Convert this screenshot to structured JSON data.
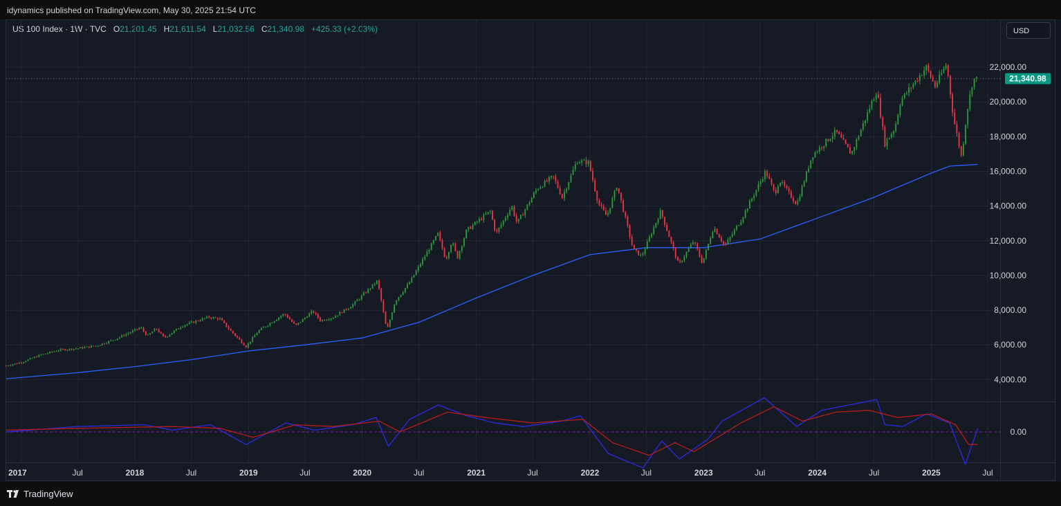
{
  "header": {
    "publisher": "idynamics published on TradingView.com, May 30, 2025 21:54 UTC"
  },
  "legend": {
    "symbol": "US 100 Index · 1W · TVC",
    "o_label": "O",
    "o_value": "21,201.45",
    "h_label": "H",
    "h_value": "21,611.54",
    "l_label": "L",
    "l_value": "21,032.56",
    "c_label": "C",
    "c_value": "21,340.98",
    "change": "+425.33 (+2.03%)"
  },
  "currency_button": "USD",
  "footer": {
    "brand": "TradingView"
  },
  "colors": {
    "up": "#26a69a",
    "up_candle": "#2e9e3a",
    "down": "#f23645",
    "ma": "#2962ff",
    "osc_fast": "#2b2bd6",
    "osc_slow": "#b71c1c",
    "price_tag": "#089981"
  },
  "chart_data": {
    "type": "candlestick",
    "symbol": "US 100 Index",
    "interval": "1W",
    "last_price": 21340.98,
    "last_price_label": "21,340.98",
    "ylim": [
      2500,
      23000
    ],
    "yticks": [
      {
        "value": 4000,
        "label": "4,000.00"
      },
      {
        "value": 6000,
        "label": "6,000.00"
      },
      {
        "value": 8000,
        "label": "8,000.00"
      },
      {
        "value": 10000,
        "label": "10,000.00"
      },
      {
        "value": 12000,
        "label": "12,000.00"
      },
      {
        "value": 14000,
        "label": "14,000.00"
      },
      {
        "value": 16000,
        "label": "16,000.00"
      },
      {
        "value": 18000,
        "label": "18,000.00"
      },
      {
        "value": 20000,
        "label": "20,000.00"
      },
      {
        "value": 22000,
        "label": "22,000.00"
      }
    ],
    "xticks": [
      {
        "date": "2017-01-01",
        "label": "2017",
        "year": true
      },
      {
        "date": "2017-07-01",
        "label": "Jul",
        "year": false
      },
      {
        "date": "2018-01-01",
        "label": "2018",
        "year": true
      },
      {
        "date": "2018-07-01",
        "label": "Jul",
        "year": false
      },
      {
        "date": "2019-01-01",
        "label": "2019",
        "year": true
      },
      {
        "date": "2019-07-01",
        "label": "Jul",
        "year": false
      },
      {
        "date": "2020-01-01",
        "label": "2020",
        "year": true
      },
      {
        "date": "2020-07-01",
        "label": "Jul",
        "year": false
      },
      {
        "date": "2021-01-01",
        "label": "2021",
        "year": true
      },
      {
        "date": "2021-07-01",
        "label": "Jul",
        "year": false
      },
      {
        "date": "2022-01-01",
        "label": "2022",
        "year": true
      },
      {
        "date": "2022-07-01",
        "label": "Jul",
        "year": false
      },
      {
        "date": "2023-01-01",
        "label": "2023",
        "year": true
      },
      {
        "date": "2023-07-01",
        "label": "Jul",
        "year": false
      },
      {
        "date": "2024-01-01",
        "label": "2024",
        "year": true
      },
      {
        "date": "2024-07-01",
        "label": "Jul",
        "year": false
      },
      {
        "date": "2025-01-01",
        "label": "2025",
        "year": true
      },
      {
        "date": "2025-07-01",
        "label": "Jul",
        "year": false
      }
    ],
    "price_path": [
      [
        "2016-11-14",
        4800
      ],
      [
        "2017-01-02",
        5000
      ],
      [
        "2017-03-01",
        5400
      ],
      [
        "2017-05-01",
        5700
      ],
      [
        "2017-07-01",
        5800
      ],
      [
        "2017-09-01",
        5950
      ],
      [
        "2017-11-01",
        6350
      ],
      [
        "2018-01-20",
        7000
      ],
      [
        "2018-02-10",
        6500
      ],
      [
        "2018-03-10",
        6950
      ],
      [
        "2018-04-05",
        6400
      ],
      [
        "2018-06-01",
        7100
      ],
      [
        "2018-08-25",
        7600
      ],
      [
        "2018-10-01",
        7500
      ],
      [
        "2018-11-05",
        6800
      ],
      [
        "2018-12-24",
        5900
      ],
      [
        "2019-02-01",
        6800
      ],
      [
        "2019-04-26",
        7800
      ],
      [
        "2019-06-01",
        7100
      ],
      [
        "2019-07-26",
        7950
      ],
      [
        "2019-08-20",
        7400
      ],
      [
        "2019-10-01",
        7600
      ],
      [
        "2019-12-01",
        8300
      ],
      [
        "2020-02-19",
        9700
      ],
      [
        "2020-03-20",
        6800
      ],
      [
        "2020-04-15",
        8500
      ],
      [
        "2020-06-01",
        9600
      ],
      [
        "2020-08-31",
        12400
      ],
      [
        "2020-09-25",
        10900
      ],
      [
        "2020-10-15",
        12000
      ],
      [
        "2020-11-01",
        11000
      ],
      [
        "2020-12-01",
        12600
      ],
      [
        "2021-02-15",
        13700
      ],
      [
        "2021-03-05",
        12400
      ],
      [
        "2021-04-25",
        14000
      ],
      [
        "2021-05-12",
        13000
      ],
      [
        "2021-07-15",
        15000
      ],
      [
        "2021-09-05",
        15700
      ],
      [
        "2021-10-04",
        14500
      ],
      [
        "2021-11-20",
        16600
      ],
      [
        "2021-12-28",
        16500
      ],
      [
        "2022-01-27",
        14200
      ],
      [
        "2022-02-24",
        13400
      ],
      [
        "2022-03-29",
        15200
      ],
      [
        "2022-05-20",
        11500
      ],
      [
        "2022-06-16",
        11100
      ],
      [
        "2022-08-16",
        13700
      ],
      [
        "2022-10-13",
        10600
      ],
      [
        "2022-11-30",
        12000
      ],
      [
        "2022-12-28",
        10700
      ],
      [
        "2023-02-02",
        12800
      ],
      [
        "2023-03-10",
        11700
      ],
      [
        "2023-05-01",
        13200
      ],
      [
        "2023-07-19",
        16000
      ],
      [
        "2023-08-18",
        14700
      ],
      [
        "2023-09-01",
        15500
      ],
      [
        "2023-10-27",
        14100
      ],
      [
        "2023-12-15",
        16900
      ],
      [
        "2024-03-01",
        18300
      ],
      [
        "2024-04-19",
        17000
      ],
      [
        "2024-07-10",
        20700
      ],
      [
        "2024-08-05",
        17600
      ],
      [
        "2024-09-06",
        18500
      ],
      [
        "2024-09-25",
        20100
      ],
      [
        "2024-12-16",
        22000
      ],
      [
        "2025-01-13",
        20900
      ],
      [
        "2025-02-19",
        22200
      ],
      [
        "2025-03-13",
        19100
      ],
      [
        "2025-04-08",
        16800
      ],
      [
        "2025-04-25",
        19400
      ],
      [
        "2025-05-15",
        21300
      ],
      [
        "2025-05-30",
        21340.98
      ]
    ],
    "ma_series": {
      "values": [
        [
          "2016-11-14",
          4050
        ],
        [
          "2017-07-01",
          4400
        ],
        [
          "2018-01-01",
          4750
        ],
        [
          "2018-07-01",
          5150
        ],
        [
          "2019-01-01",
          5650
        ],
        [
          "2019-07-01",
          6000
        ],
        [
          "2020-01-01",
          6400
        ],
        [
          "2020-07-01",
          7300
        ],
        [
          "2021-01-01",
          8700
        ],
        [
          "2021-07-01",
          10000
        ],
        [
          "2022-01-01",
          11200
        ],
        [
          "2022-07-01",
          11600
        ],
        [
          "2023-01-01",
          11600
        ],
        [
          "2023-07-01",
          12100
        ],
        [
          "2024-01-01",
          13300
        ],
        [
          "2024-07-01",
          14500
        ],
        [
          "2025-01-01",
          15900
        ],
        [
          "2025-03-01",
          16300
        ],
        [
          "2025-05-30",
          16400
        ]
      ]
    },
    "oscillator": {
      "zero_label": "0.00",
      "fast": [
        [
          "2016-11-14",
          0.0
        ],
        [
          "2017-07-01",
          0.3
        ],
        [
          "2018-02-01",
          0.4
        ],
        [
          "2018-05-01",
          0.1
        ],
        [
          "2018-09-01",
          0.4
        ],
        [
          "2018-12-24",
          -0.7
        ],
        [
          "2019-05-01",
          0.5
        ],
        [
          "2019-08-01",
          0.1
        ],
        [
          "2019-12-01",
          0.4
        ],
        [
          "2020-02-15",
          0.8
        ],
        [
          "2020-03-25",
          -0.8
        ],
        [
          "2020-06-01",
          0.7
        ],
        [
          "2020-09-01",
          1.5
        ],
        [
          "2020-12-01",
          0.9
        ],
        [
          "2021-03-01",
          0.5
        ],
        [
          "2021-06-01",
          0.3
        ],
        [
          "2021-10-01",
          0.6
        ],
        [
          "2021-12-01",
          0.9
        ],
        [
          "2022-03-01",
          -1.2
        ],
        [
          "2022-06-20",
          -2.0
        ],
        [
          "2022-08-20",
          -0.5
        ],
        [
          "2022-10-15",
          -1.5
        ],
        [
          "2023-01-15",
          -0.4
        ],
        [
          "2023-03-01",
          0.6
        ],
        [
          "2023-07-15",
          1.9
        ],
        [
          "2023-10-27",
          0.3
        ],
        [
          "2024-01-15",
          1.2
        ],
        [
          "2024-07-10",
          1.8
        ],
        [
          "2024-08-05",
          0.4
        ],
        [
          "2024-10-01",
          0.3
        ],
        [
          "2024-12-16",
          1.0
        ],
        [
          "2025-03-01",
          0.5
        ],
        [
          "2025-04-20",
          -1.8
        ],
        [
          "2025-05-30",
          0.2
        ]
      ],
      "slow": [
        [
          "2016-11-14",
          0.1
        ],
        [
          "2017-07-01",
          0.2
        ],
        [
          "2018-05-01",
          0.3
        ],
        [
          "2018-10-01",
          0.2
        ],
        [
          "2019-01-15",
          -0.3
        ],
        [
          "2019-06-01",
          0.4
        ],
        [
          "2019-10-01",
          0.3
        ],
        [
          "2020-02-25",
          0.6
        ],
        [
          "2020-05-01",
          0.0
        ],
        [
          "2020-10-01",
          1.1
        ],
        [
          "2021-02-01",
          0.8
        ],
        [
          "2021-07-01",
          0.5
        ],
        [
          "2021-12-10",
          0.7
        ],
        [
          "2022-03-15",
          -0.6
        ],
        [
          "2022-07-10",
          -1.3
        ],
        [
          "2022-10-01",
          -0.6
        ],
        [
          "2022-12-01",
          -1.1
        ],
        [
          "2023-05-01",
          0.5
        ],
        [
          "2023-08-15",
          1.4
        ],
        [
          "2023-11-15",
          0.6
        ],
        [
          "2024-03-01",
          1.1
        ],
        [
          "2024-06-15",
          1.2
        ],
        [
          "2024-09-15",
          0.8
        ],
        [
          "2025-01-01",
          1.0
        ],
        [
          "2025-03-20",
          0.4
        ],
        [
          "2025-05-01",
          -0.7
        ],
        [
          "2025-05-30",
          -0.7
        ]
      ]
    }
  }
}
